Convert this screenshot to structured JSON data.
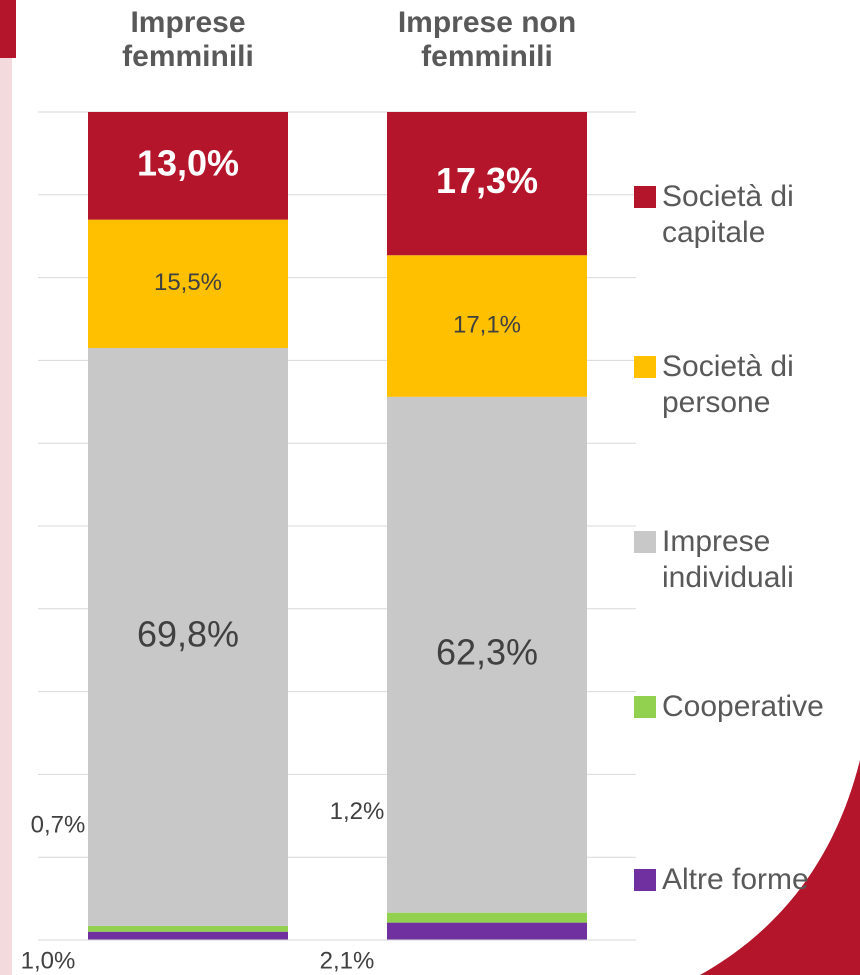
{
  "chart_data": {
    "type": "stacked_bar",
    "categories": [
      "Imprese femminili",
      "Imprese non femminili"
    ],
    "ylim": [
      0,
      100
    ],
    "yticks": [
      0,
      10,
      20,
      30,
      40,
      50,
      60,
      70,
      80,
      90,
      100
    ],
    "grid": true,
    "legend": "right",
    "series": [
      {
        "name": "Altre forme",
        "color": "#7030a0",
        "values": [
          1.0,
          2.1
        ],
        "value_labels": [
          "1,0%",
          "2,1%"
        ]
      },
      {
        "name": "Cooperative",
        "color": "#92d050",
        "values": [
          0.7,
          1.2
        ],
        "value_labels": [
          "0,7%",
          "1,2%"
        ]
      },
      {
        "name": "Imprese individuali",
        "color": "#c8c8c8",
        "values": [
          69.8,
          62.3
        ],
        "value_labels": [
          "69,8%",
          "62,3%"
        ]
      },
      {
        "name": "Società di persone",
        "color": "#ffc000",
        "values": [
          15.5,
          17.1
        ],
        "value_labels": [
          "15,5%",
          "17,1%"
        ]
      },
      {
        "name": "Società di capitale",
        "color": "#b5152b",
        "values": [
          13.0,
          17.3
        ],
        "value_labels": [
          "13,0%",
          "17,3%"
        ]
      }
    ]
  }
}
